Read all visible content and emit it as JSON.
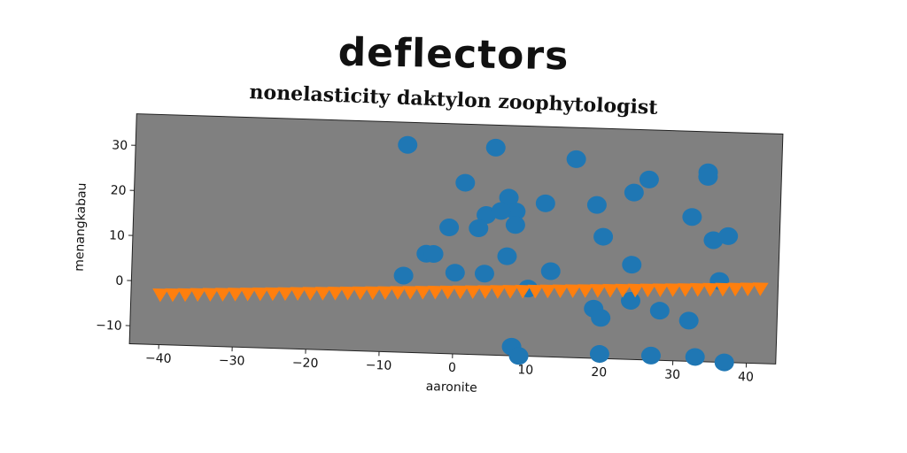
{
  "chart_data": {
    "type": "scatter",
    "title": "deflectors",
    "subtitle": "nonelasticity daktylon zoophytologist",
    "xlabel": "aaronite",
    "ylabel": "menangkabau",
    "xlim": [
      -44,
      44
    ],
    "ylim": [
      -14,
      37
    ],
    "xticks": [
      "−40",
      "−30",
      "−20",
      "−10",
      "0",
      "10",
      "20",
      "30",
      "40"
    ],
    "yticks": [
      "−10",
      "0",
      "10",
      "20",
      "30"
    ],
    "background": "#808080",
    "grid": false,
    "legend": "none",
    "colors": {
      "scatter": "#1f77b4",
      "line": "#ff7f0e"
    },
    "series": [
      {
        "marker": "circle",
        "points": [
          [
            -7,
            32
          ],
          [
            5,
            32
          ],
          [
            16,
            30
          ],
          [
            34,
            28
          ],
          [
            34,
            27
          ],
          [
            1,
            24
          ],
          [
            26,
            26
          ],
          [
            24,
            23
          ],
          [
            7,
            21
          ],
          [
            8,
            18
          ],
          [
            12,
            20
          ],
          [
            19,
            20
          ],
          [
            4,
            17
          ],
          [
            6,
            18
          ],
          [
            3,
            14
          ],
          [
            8,
            15
          ],
          [
            -1,
            14
          ],
          [
            20,
            13
          ],
          [
            32,
            18
          ],
          [
            35,
            13
          ],
          [
            37,
            14
          ],
          [
            -4,
            8
          ],
          [
            -3,
            8
          ],
          [
            7,
            8
          ],
          [
            24,
            7
          ],
          [
            13,
            5
          ],
          [
            36,
            4
          ],
          [
            0,
            4
          ],
          [
            4,
            4
          ],
          [
            -7,
            3
          ],
          [
            10,
            1
          ],
          [
            24,
            -1
          ],
          [
            28,
            -3
          ],
          [
            19,
            -3
          ],
          [
            20,
            -5
          ],
          [
            32,
            -5
          ],
          [
            8,
            -12
          ],
          [
            9,
            -14
          ],
          [
            20,
            -13
          ],
          [
            27,
            -13
          ],
          [
            33,
            -13
          ],
          [
            37,
            -14
          ]
        ]
      },
      {
        "marker": "triangle-down",
        "x_start": -40,
        "x_end": 41,
        "x_step": 1.7,
        "y_start": -3,
        "y_end": 2.5
      }
    ]
  }
}
